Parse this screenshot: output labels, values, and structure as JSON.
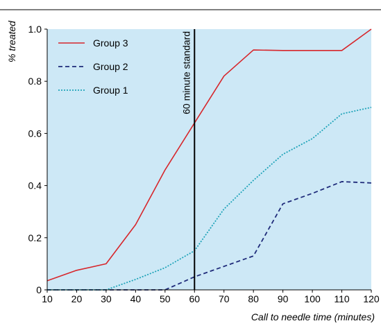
{
  "chart_data": {
    "type": "line",
    "title": "",
    "xlabel": "Call to needle time (minutes)",
    "ylabel": "% treated",
    "x": [
      10,
      20,
      30,
      40,
      50,
      60,
      70,
      80,
      90,
      100,
      110,
      120
    ],
    "xlim": [
      10,
      120
    ],
    "ylim": [
      0,
      1.0
    ],
    "x_ticks": [
      "10",
      "20",
      "30",
      "40",
      "50",
      "60",
      "70",
      "80",
      "90",
      "100",
      "110",
      "120"
    ],
    "y_ticks": [
      {
        "value": 0,
        "label": "0"
      },
      {
        "value": 0.2,
        "label": "0.2"
      },
      {
        "value": 0.4,
        "label": "0.4"
      },
      {
        "value": 0.6,
        "label": "0.6"
      },
      {
        "value": 0.8,
        "label": "0.8"
      },
      {
        "value": 1.0,
        "label": "1.0"
      }
    ],
    "grid": false,
    "legend_position": "top-left",
    "background_color": "#cde8f6",
    "series": [
      {
        "name": "Group 3",
        "style": "solid",
        "color": "#d7262b",
        "values": [
          0.035,
          0.075,
          0.1,
          0.25,
          0.46,
          0.64,
          0.82,
          0.92,
          0.918,
          0.918,
          0.918,
          1.0
        ]
      },
      {
        "name": "Group 2",
        "style": "dashed",
        "color": "#1f2b7a",
        "values": [
          0.0,
          0.0,
          0.0,
          0.0,
          0.0,
          0.05,
          0.09,
          0.13,
          0.33,
          0.37,
          0.415,
          0.41
        ]
      },
      {
        "name": "Group 1",
        "style": "dotted",
        "color": "#1ea3b8",
        "values": [
          0.0,
          0.0,
          0.0,
          0.04,
          0.085,
          0.15,
          0.31,
          0.42,
          0.52,
          0.58,
          0.675,
          0.7
        ]
      }
    ],
    "annotations": [
      {
        "type": "vline",
        "x": 60,
        "label": "60 minute standard",
        "color": "#000000"
      }
    ]
  }
}
